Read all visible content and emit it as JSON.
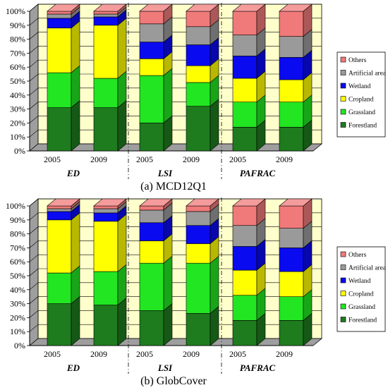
{
  "series_names": [
    "Forestland",
    "Grassland",
    "Cropland",
    "Wetland",
    "Artificial area",
    "Others"
  ],
  "colors": {
    "Forestland": "#1e7b1e",
    "Grassland": "#22e622",
    "Cropland": "#ffff00",
    "Wetland": "#0a0af0",
    "Artificial area": "#9a9a9a",
    "Others": "#f07a7a",
    "background": "#ffffcc",
    "floor": "#9e9e9e"
  },
  "chart_data": [
    {
      "type": "bar",
      "subtype": "stacked-100-3d",
      "caption": "(a) MCD12Q1",
      "x_tick_labels": [
        "2005",
        "2009",
        "2005",
        "2009",
        "2005",
        "2009"
      ],
      "groups": [
        "ED",
        "LSI",
        "PAFRAC"
      ],
      "yticks": [
        "0%",
        "10%",
        "20%",
        "30%",
        "40%",
        "50%",
        "60%",
        "70%",
        "80%",
        "90%",
        "100%"
      ],
      "ylim": [
        0,
        100
      ],
      "legend_position": "right",
      "series": [
        {
          "name": "Forestland",
          "values": [
            31,
            31,
            20,
            32,
            17,
            17
          ]
        },
        {
          "name": "Grassland",
          "values": [
            25,
            21,
            34,
            17,
            18,
            18
          ]
        },
        {
          "name": "Cropland",
          "values": [
            32,
            38,
            12,
            12,
            17,
            16
          ]
        },
        {
          "name": "Wetland",
          "values": [
            7,
            6,
            12,
            15,
            16,
            16
          ]
        },
        {
          "name": "Artificial area",
          "values": [
            3,
            2,
            13,
            13,
            15,
            15
          ]
        },
        {
          "name": "Others",
          "values": [
            2,
            2,
            9,
            11,
            17,
            18
          ]
        }
      ]
    },
    {
      "type": "bar",
      "subtype": "stacked-100-3d",
      "caption": "(b) GlobCover",
      "x_tick_labels": [
        "2005",
        "2009",
        "2005",
        "2009",
        "2005",
        "2009"
      ],
      "groups": [
        "ED",
        "LSI",
        "PAFRAC"
      ],
      "yticks": [
        "0%",
        "10%",
        "20%",
        "30%",
        "40%",
        "50%",
        "60%",
        "70%",
        "80%",
        "90%",
        "100%"
      ],
      "ylim": [
        0,
        100
      ],
      "legend_position": "right",
      "series": [
        {
          "name": "Forestland",
          "values": [
            30,
            29,
            25,
            23,
            18,
            18
          ]
        },
        {
          "name": "Grassland",
          "values": [
            22,
            24,
            34,
            36,
            18,
            17
          ]
        },
        {
          "name": "Cropland",
          "values": [
            38,
            36,
            16,
            14,
            18,
            18
          ]
        },
        {
          "name": "Wetland",
          "values": [
            6,
            6,
            13,
            13,
            17,
            17
          ]
        },
        {
          "name": "Artificial area",
          "values": [
            2,
            3,
            9,
            10,
            15,
            14
          ]
        },
        {
          "name": "Others",
          "values": [
            2,
            2,
            3,
            4,
            14,
            16
          ]
        }
      ]
    }
  ]
}
